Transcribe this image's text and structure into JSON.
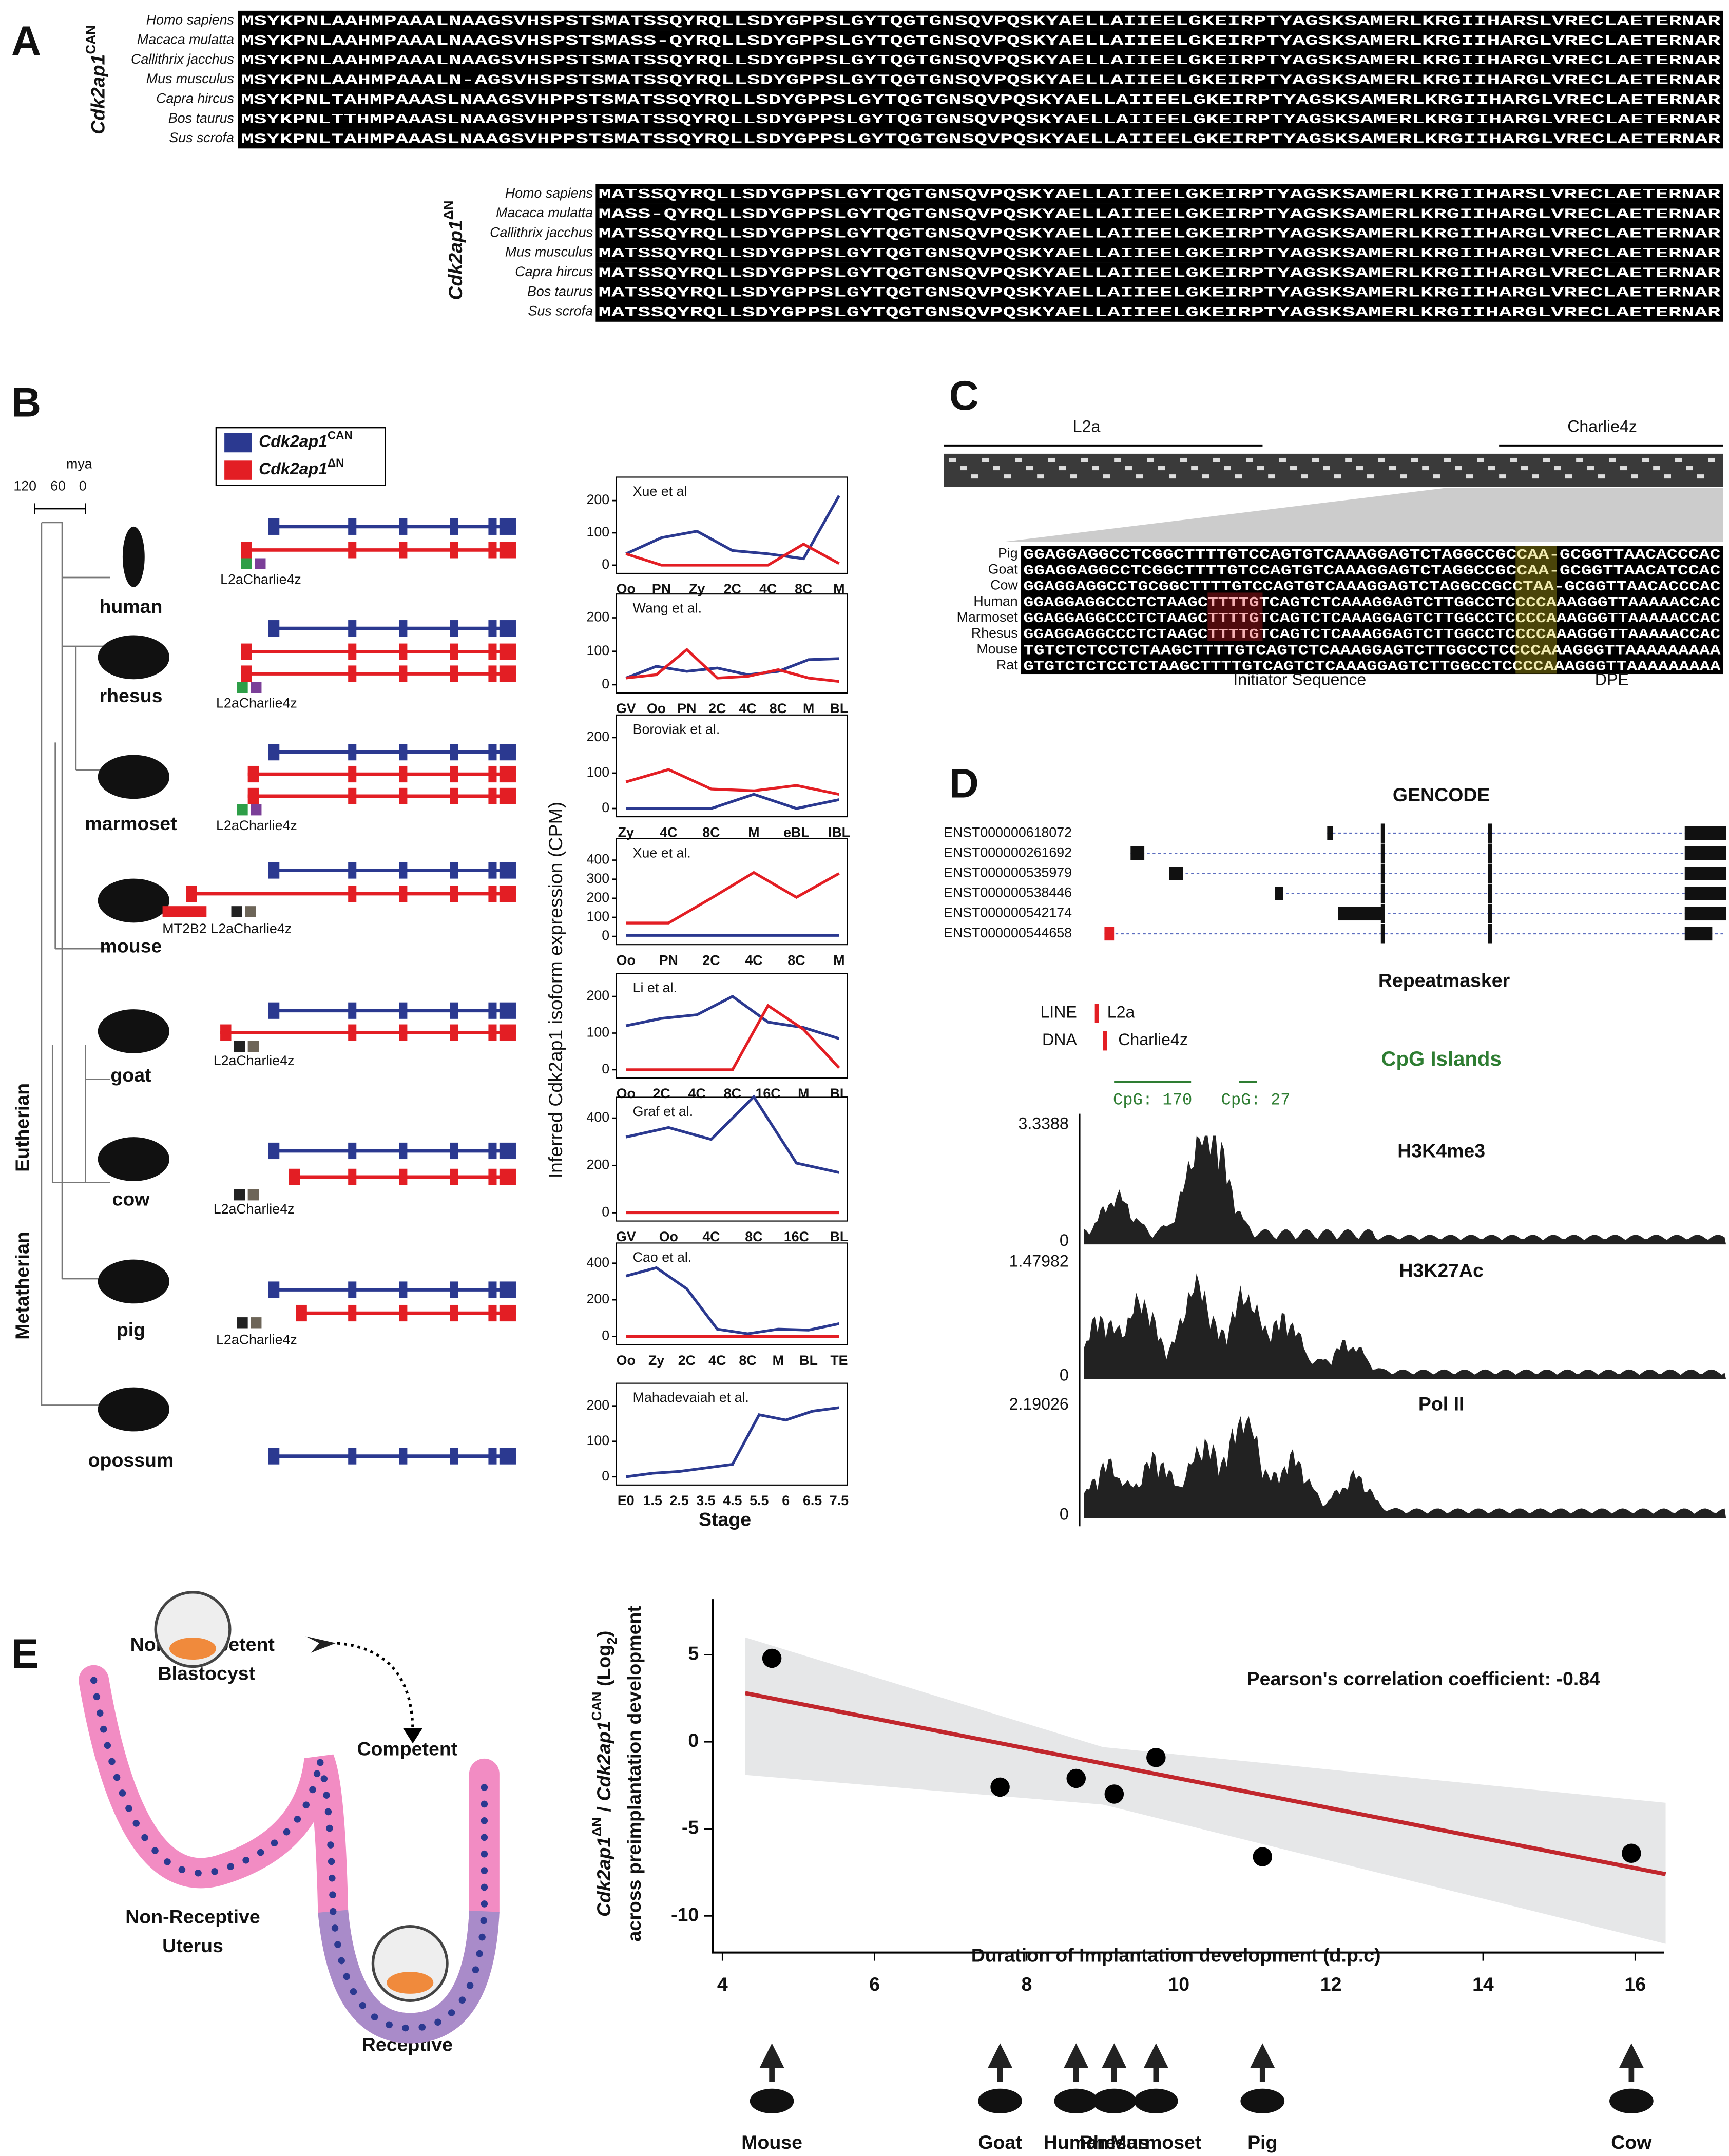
{
  "figure": {
    "panel_a": {
      "label": "A",
      "full_title": "Cdk2ap1",
      "full_superscript": "CAN",
      "full_rows": [
        {
          "species": "Homo sapiens",
          "sequence": "MSYKPNLAAHMPAAALNAAGSVHSPSTSMATSSQYRQLLSDYGPPSLGYTQGTGNSQVPQSKYAELLAIIEELGKEIRPTYAGSKSAMERLKRGIIHARSLVRECLAETERNAR"
        },
        {
          "species": "Macaca mulatta",
          "sequence": "MSYKPNLAAHMPAAALNAAGSVHSPSTSMASS-QYRQLLSDYGPPSLGYTQGTGNSQVPQSKYAELLAIIEELGKEIRPTYAGSKSAMERLKRGIIHARGLVRECLAETERNAR"
        },
        {
          "species": "Callithrix jacchus",
          "sequence": "MSYKPNLAAHMPAAALNAAGSVHSPSTSMATSSQYRQLLSDYGPPSLGYTQGTGNSQVPQSKYAELLAIIEELGKEIRPTYAGSKSAMERLKRGIIHARGLVRECLAETERNAR"
        },
        {
          "species": "Mus musculus",
          "sequence": "MSYKPNLAAHMPAAALN-AGSVHSPSTSMATSSQYRQLLSDYGPPSLGYTQGTGNSQVPQSKYAELLAIIEELGKEIRPTYAGSKSAMERLKRGIIHARGLVRECLAETERNAR"
        },
        {
          "species": "Capra hircus",
          "sequence": "MSYKPNLTAHMPAAASLNAAGSVHPPSTSMATSSQYRQLLSDYGPPSLGYTQGTGNSQVPQSKYAELLAIIEELGKEIRPTYAGSKSAMERLKRGIIHARGLVRECLAETERNAR"
        },
        {
          "species": "Bos taurus",
          "sequence": "MSYKPNLTTHMPAAASLNAAGSVHPPSTSMATSSQYRQLLSDYGPPSLGYTQGTGNSQVPQSKYAELLAIIEELGKEIRPTYAGSKSAMERLKRGIIHARGLVRECLAETERNAR"
        },
        {
          "species": "Sus scrofa",
          "sequence": "MSYKPNLTAHMPAAASLNAAGSVHPPSTSMATSSQYRQLLSDYGPPSLGYTQGTGNSQVPQSKYAELLAIIEELGKEIRPTYAGSKSAMERLKRGIIHARGLVRECLAETERNAR"
        }
      ],
      "short_title": "Cdk2ap1",
      "short_superscript": "ΔN",
      "short_rows": [
        {
          "species": "Homo sapiens",
          "sequence": "MATSSQYRQLLSDYGPPSLGYTQGTGNSQVPQSKYAELLAIIEELGKEIRPTYAGSKSAMERLKRGIIHARSLVRECLAETERNAR"
        },
        {
          "species": "Macaca mulatta",
          "sequence": "MASS-QYRQLLSDYGPPSLGYTQGTGNSQVPQSKYAELLAIIEELGKEIRPTYAGSKSAMERLKRGIIHARGLVRECLAETERNAR"
        },
        {
          "species": "Callithrix jacchus",
          "sequence": "MATSSQYRQLLSDYGPPSLGYTQGTGNSQVPQSKYAELLAIIEELGKEIRPTYAGSKSAMERLKRGIIHARGLVRECLAETERNAR"
        },
        {
          "species": "Mus musculus",
          "sequence": "MATSSQYRQLLSDYGPPSLGYTQGTGNSQVPQSKYAELLAIIEELGKEIRPTYAGSKSAMERLKRGIIHARGLVRECLAETERNAR"
        },
        {
          "species": "Capra hircus",
          "sequence": "MATSSQYRQLLSDYGPPSLGYTQGTGNSQVPQSKYAELLAIIEELGKEIRPTYAGSKSAMERLKRGIIHARGLVRECLAETERNAR"
        },
        {
          "species": "Bos taurus",
          "sequence": "MATSSQYRQLLSDYGPPSLGYTQGTGNSQVPQSKYAELLAIIEELGKEIRPTYAGSKSAMERLKRGIIHARGLVRECLAETERNAR"
        },
        {
          "species": "Sus scrofa",
          "sequence": "MATSSQYRQLLSDYGPPSLGYTQGTGNSQVPQSKYAELLAIIEELGKEIRPTYAGSKSAMERLKRGIIHARGLVRECLAETERNAR"
        }
      ]
    },
    "panel_b": {
      "label": "B",
      "scale_label": "mya",
      "scale_ticks": [
        "120",
        "60",
        "0"
      ],
      "legend": [
        {
          "name": "Cdk2ap1",
          "superscript": "CAN",
          "color": "#2b3990"
        },
        {
          "name": "Cdk2ap1",
          "superscript": "ΔN",
          "color": "#e31e24"
        }
      ],
      "species": [
        {
          "name": "human",
          "elements": [
            "L2aCharlie4z"
          ]
        },
        {
          "name": "rhesus",
          "elements": [
            "L2aCharlie4z"
          ]
        },
        {
          "name": "marmoset",
          "elements": [
            "L2aCharlie4z"
          ]
        },
        {
          "name": "mouse",
          "elements": [
            "MT2B2",
            "L2aCharlie4z"
          ]
        },
        {
          "name": "goat",
          "elements": [
            "L2aCharlie4z"
          ]
        },
        {
          "name": "cow",
          "elements": [
            "L2aCharlie4z"
          ]
        },
        {
          "name": "pig",
          "elements": [
            "L2aCharlie4z"
          ]
        },
        {
          "name": "opossum",
          "elements": []
        }
      ],
      "clades": [
        "Eutherian",
        "Metatherian"
      ],
      "y_axis_label": "Inferred Cdk2ap1 isoform expression (CPM)",
      "x_axis_label": "Stage"
    },
    "panel_c": {
      "label": "C",
      "repeats": [
        "L2a",
        "Charlie4z"
      ],
      "rows": [
        {
          "species": "Pig",
          "sequence": "GGAGGAGGCCTCGGCTTTTGTCCAGTGTCAAAGGAGTCTAGGCCGCCAA-GCGGTTAACACCCAC"
        },
        {
          "species": "Goat",
          "sequence": "GGAGGAGGCCTCGGCTTTTGTCCAGTGTCAAAGGAGTCTAGGCCGCCAA-GCGGTTAACATCCAC"
        },
        {
          "species": "Cow",
          "sequence": "GGAGGAGGCCTGCGGCTTTTGTCCAGTGTCAAAGGAGTCTAGGCCGCCTAA-GCGGTTAACACCCAC"
        },
        {
          "species": "Human",
          "sequence": "GGAGGAGGCCCTCTAAGCTTTTGTCAGTCTCAAAGGAGTCTTGGCCTCCCCAAAGGGTTAAAAACCAC"
        },
        {
          "species": "Marmoset",
          "sequence": "GGAGGAGGCCCTCTAAGCTTTTGTCAGTCTCAAAGGAGTCTTGGCCTCCCCAAAGGGTTAAAAACCAC"
        },
        {
          "species": "Rhesus",
          "sequence": "GGAGGAGGCCCTCTAAGCTTTTGTCAGTCTCAAAGGAGTCTTGGCCTCCCCAAAGGGTTAAAAACCAC"
        },
        {
          "species": "Mouse",
          "sequence": "TGTCTCTCCTCTAAGCTTTTGTCAGTCTCAAAGGAGTCTTGGCCTCCCCAAAGGGTTAAAAAAAAA"
        },
        {
          "species": "Rat",
          "sequence": "GTGTCTCTCCTCTAAGCTTTTGTCAGTCTCAAAGGAGTCTTGGCCTCCCCAAAGGGTTAAAAAAAAA"
        }
      ],
      "motifs": [
        "Initiator Sequence",
        "DPE"
      ]
    },
    "panel_d": {
      "label": "D",
      "gene_track": "GENCODE",
      "transcripts": [
        "ENST000000618072",
        "ENST000000261692",
        "ENST000000535979",
        "ENST000000538446",
        "ENST000000542174",
        "ENST000000544658"
      ],
      "repeat_track": "Repeatmasker",
      "repeat_classes": [
        {
          "class": "LINE",
          "name": "L2a"
        },
        {
          "class": "DNA",
          "name": "Charlie4z"
        }
      ],
      "cpg_track": "CpG Islands",
      "cpg_islands": [
        "CpG: 170",
        "CpG: 27"
      ],
      "signal_tracks": [
        {
          "name": "H3K4me3",
          "max": 3.3388,
          "min": 0
        },
        {
          "name": "H3K27Ac",
          "max": 1.47982,
          "min": 0
        },
        {
          "name": "Pol II",
          "max": 2.19026,
          "min": 0
        }
      ]
    },
    "panel_e": {
      "label": "E",
      "diagram_labels": [
        "Non-Competent",
        "Blastocyst",
        "Competent",
        "Non-Receptive",
        "Uterus",
        "Receptive"
      ]
    }
  },
  "chart_data": [
    {
      "type": "line",
      "title": "Xue et al",
      "categories": [
        "Oo",
        "PN",
        "Zy",
        "2C",
        "4C",
        "8C",
        "M"
      ],
      "ylim": [
        0,
        230
      ],
      "yticks": [
        0,
        100,
        200
      ],
      "series": [
        {
          "color": "#2b3990",
          "values": [
            35,
            85,
            105,
            45,
            35,
            20,
            215
          ]
        },
        {
          "color": "#e31e24",
          "values": [
            35,
            0,
            0,
            0,
            0,
            65,
            5
          ]
        }
      ]
    },
    {
      "type": "line",
      "title": "Wang et al.",
      "categories": [
        "GV",
        "Oo",
        "PN",
        "2C",
        "4C",
        "8C",
        "M",
        "BL"
      ],
      "ylim": [
        0,
        230
      ],
      "yticks": [
        0,
        100,
        200
      ],
      "series": [
        {
          "color": "#2b3990",
          "values": [
            20,
            55,
            40,
            50,
            30,
            40,
            75,
            78
          ]
        },
        {
          "color": "#e31e24",
          "values": [
            20,
            30,
            105,
            20,
            25,
            45,
            20,
            10
          ]
        }
      ]
    },
    {
      "type": "line",
      "title": "Boroviak et al.",
      "categories": [
        "Zy",
        "4C",
        "8C",
        "M",
        "eBL",
        "lBL"
      ],
      "ylim": [
        0,
        225
      ],
      "yticks": [
        0,
        100,
        200
      ],
      "series": [
        {
          "color": "#2b3990",
          "values": [
            0,
            0,
            0,
            40,
            0,
            25
          ]
        },
        {
          "color": "#e31e24",
          "values": [
            75,
            110,
            55,
            50,
            65,
            40
          ]
        }
      ]
    },
    {
      "type": "line",
      "title": "Xue et al.",
      "categories": [
        "Oo",
        "PN",
        "2C",
        "4C",
        "8C",
        "M"
      ],
      "ylim": [
        0,
        440
      ],
      "yticks": [
        0,
        100,
        200,
        300,
        400
      ],
      "series": [
        {
          "color": "#2b3990",
          "values": [
            5,
            5,
            5,
            5,
            5,
            5
          ]
        },
        {
          "color": "#e31e24",
          "values": [
            70,
            70,
            200,
            335,
            205,
            330
          ]
        }
      ]
    },
    {
      "type": "line",
      "title": "Li et al.",
      "categories": [
        "Oo",
        "2C",
        "4C",
        "8C",
        "16C",
        "M",
        "BL"
      ],
      "ylim": [
        0,
        225
      ],
      "yticks": [
        0,
        100,
        200
      ],
      "series": [
        {
          "color": "#2b3990",
          "values": [
            120,
            140,
            150,
            200,
            130,
            115,
            85
          ]
        },
        {
          "color": "#e31e24",
          "values": [
            0,
            0,
            0,
            0,
            175,
            110,
            5
          ]
        }
      ]
    },
    {
      "type": "line",
      "title": "Graf et al.",
      "categories": [
        "GV",
        "Oo",
        "4C",
        "8C",
        "16C",
        "BL"
      ],
      "ylim": [
        0,
        430
      ],
      "yticks": [
        0,
        200,
        400
      ],
      "series": [
        {
          "color": "#2b3990",
          "values": [
            320,
            360,
            310,
            490,
            210,
            170
          ]
        },
        {
          "color": "#e31e24",
          "values": [
            0,
            0,
            0,
            0,
            0,
            0
          ]
        }
      ]
    },
    {
      "type": "line",
      "title": "Cao et al.",
      "categories": [
        "Oo",
        "Zy",
        "2C",
        "4C",
        "8C",
        "M",
        "BL",
        "TE"
      ],
      "ylim": [
        0,
        435
      ],
      "yticks": [
        0,
        200,
        400
      ],
      "series": [
        {
          "color": "#2b3990",
          "values": [
            330,
            375,
            260,
            40,
            15,
            40,
            35,
            70
          ]
        },
        {
          "color": "#e31e24",
          "values": [
            0,
            0,
            0,
            0,
            0,
            0,
            0,
            0
          ]
        }
      ]
    },
    {
      "type": "line",
      "title": "Mahadevaiah et al.",
      "categories": [
        "E0",
        "1.5",
        "2.5",
        "3.5",
        "4.5",
        "5.5",
        "6",
        "6.5",
        "7.5"
      ],
      "ylim": [
        0,
        225
      ],
      "yticks": [
        0,
        100,
        200
      ],
      "series": [
        {
          "color": "#2b3990",
          "values": [
            0,
            10,
            15,
            25,
            35,
            175,
            160,
            185,
            195
          ]
        }
      ]
    },
    {
      "type": "scatter",
      "annotation": "Pearson's correlation coefficient: -0.84",
      "xlabel": "Duration of Implantation development (d.p.c)",
      "ylabel": [
        "Cdk2ap1",
        "ΔN",
        " / ",
        "Cdk2ap1",
        "CAN",
        " (Log",
        "2",
        ")"
      ],
      "ylabel2": "across preimplantation development",
      "labels": [
        "Mouse",
        "Goat",
        "Human",
        "Rhesus",
        "Marmoset",
        "Pig",
        "Cow"
      ],
      "x": [
        4.65,
        7.65,
        8.65,
        9.15,
        9.7,
        11.1,
        15.95
      ],
      "values": [
        4.8,
        -2.6,
        -2.1,
        -3.0,
        -0.9,
        -6.6,
        -6.4
      ],
      "color": "#000000",
      "fit_line": {
        "x": [
          4.3,
          16.4
        ],
        "values": [
          2.8,
          -7.6
        ],
        "color": "#c1272d"
      },
      "ci_band": {
        "x": [
          4.3,
          9,
          16.4
        ],
        "upper": [
          6,
          -0.3,
          -3.5
        ],
        "lower": [
          -1.9,
          -3.6,
          -11.6
        ],
        "color": "#e6e7e8"
      },
      "xlim": [
        3.87,
        16.38
      ],
      "ylim": [
        -12.1,
        8.2
      ],
      "xticks": [
        4,
        6,
        8,
        10,
        12,
        14,
        16
      ],
      "yticks": [
        -10,
        -5,
        0,
        5
      ]
    }
  ]
}
